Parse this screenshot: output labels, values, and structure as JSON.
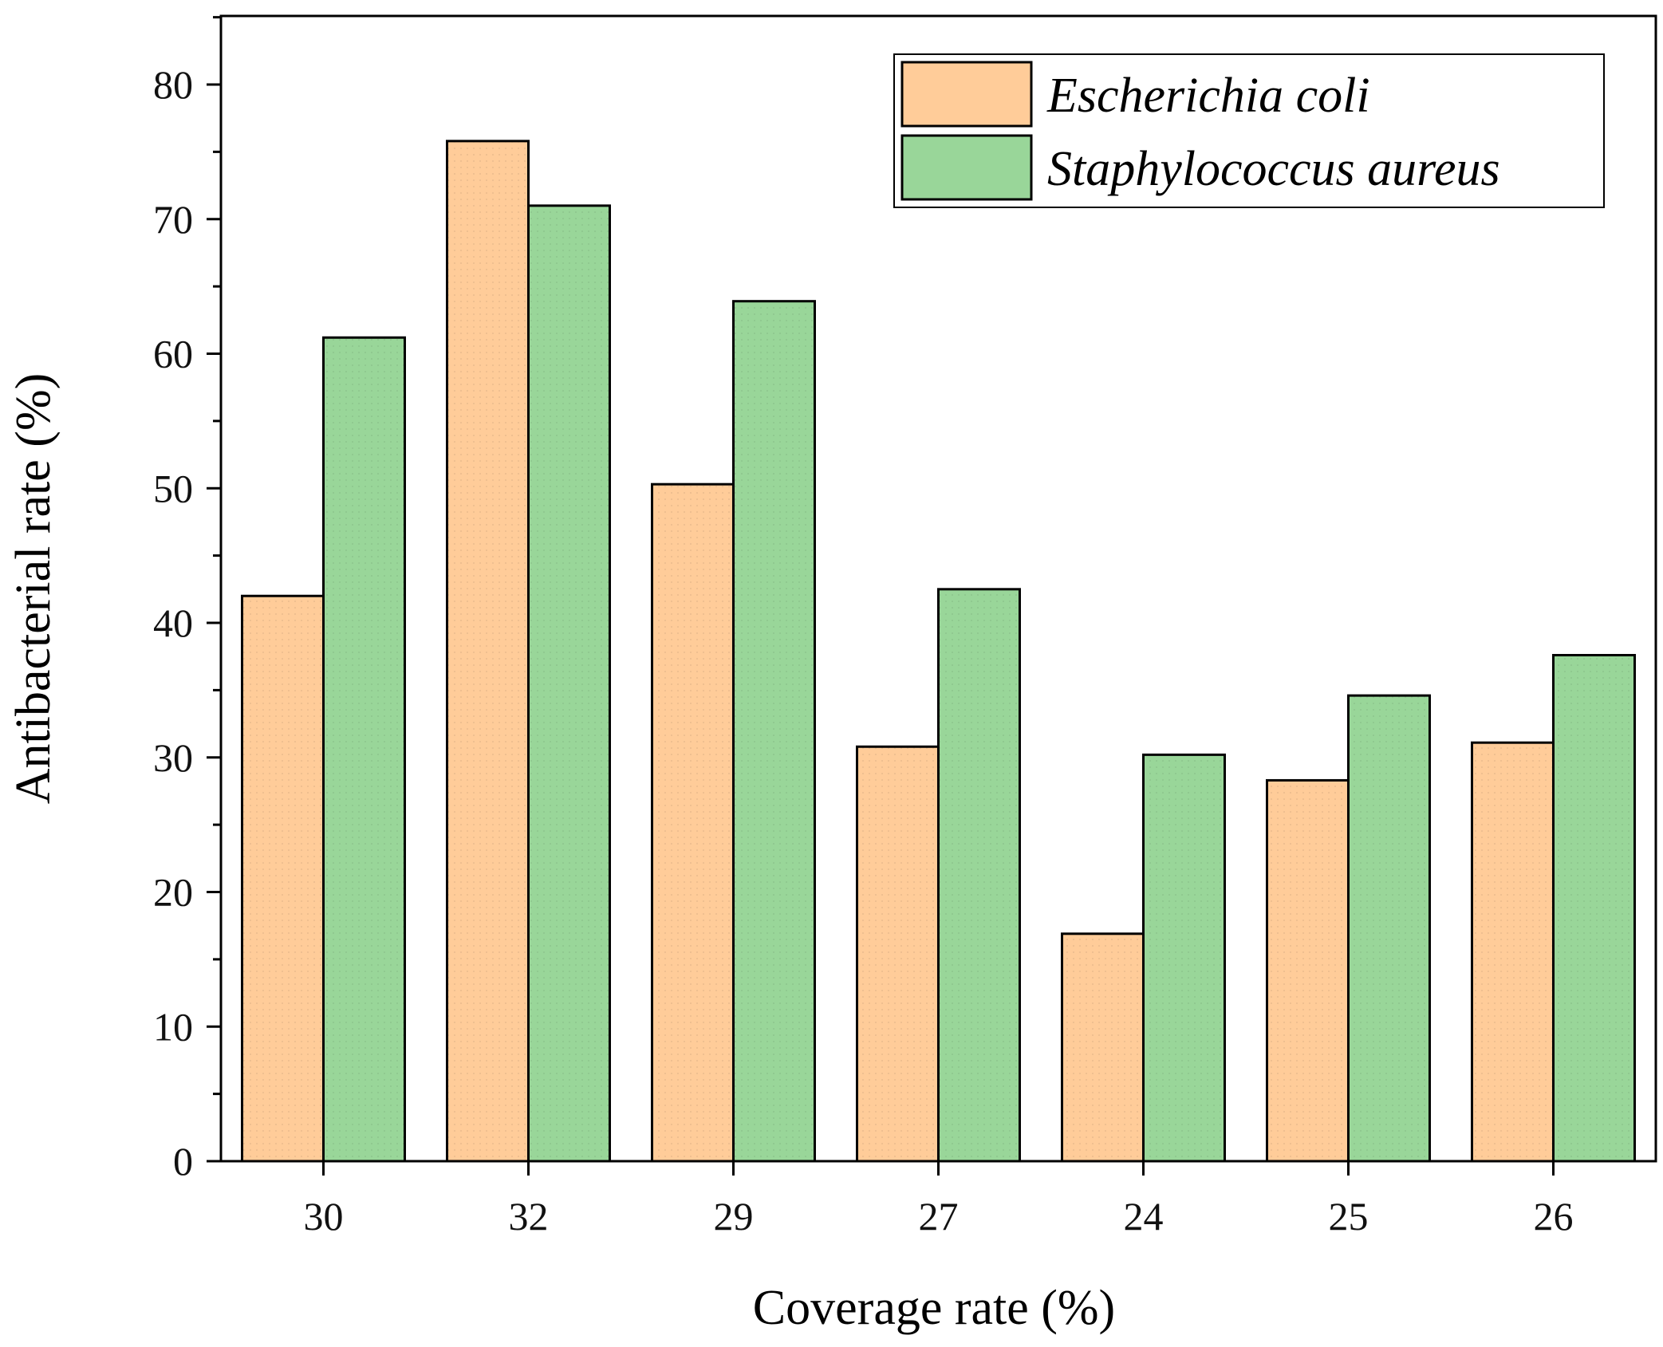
{
  "chart_data": {
    "type": "bar",
    "title": "",
    "xlabel": "Coverage rate (%)",
    "ylabel": "Antibacterial rate (%)",
    "categories": [
      "30",
      "32",
      "29",
      "27",
      "24",
      "25",
      "26"
    ],
    "series": [
      {
        "name": "Escherichia coli",
        "color": "#FFCC99",
        "values": [
          42.0,
          75.8,
          50.3,
          30.8,
          16.9,
          28.3,
          31.1
        ]
      },
      {
        "name": "Staphylococcus aureus",
        "color": "#99D699",
        "values": [
          61.2,
          71.0,
          63.9,
          42.5,
          30.2,
          34.6,
          37.6
        ]
      }
    ],
    "ylim": [
      0,
      85
    ],
    "yticks": [
      0,
      10,
      20,
      30,
      40,
      50,
      60,
      70,
      80
    ],
    "grid": false,
    "legend_position": "top-right"
  }
}
